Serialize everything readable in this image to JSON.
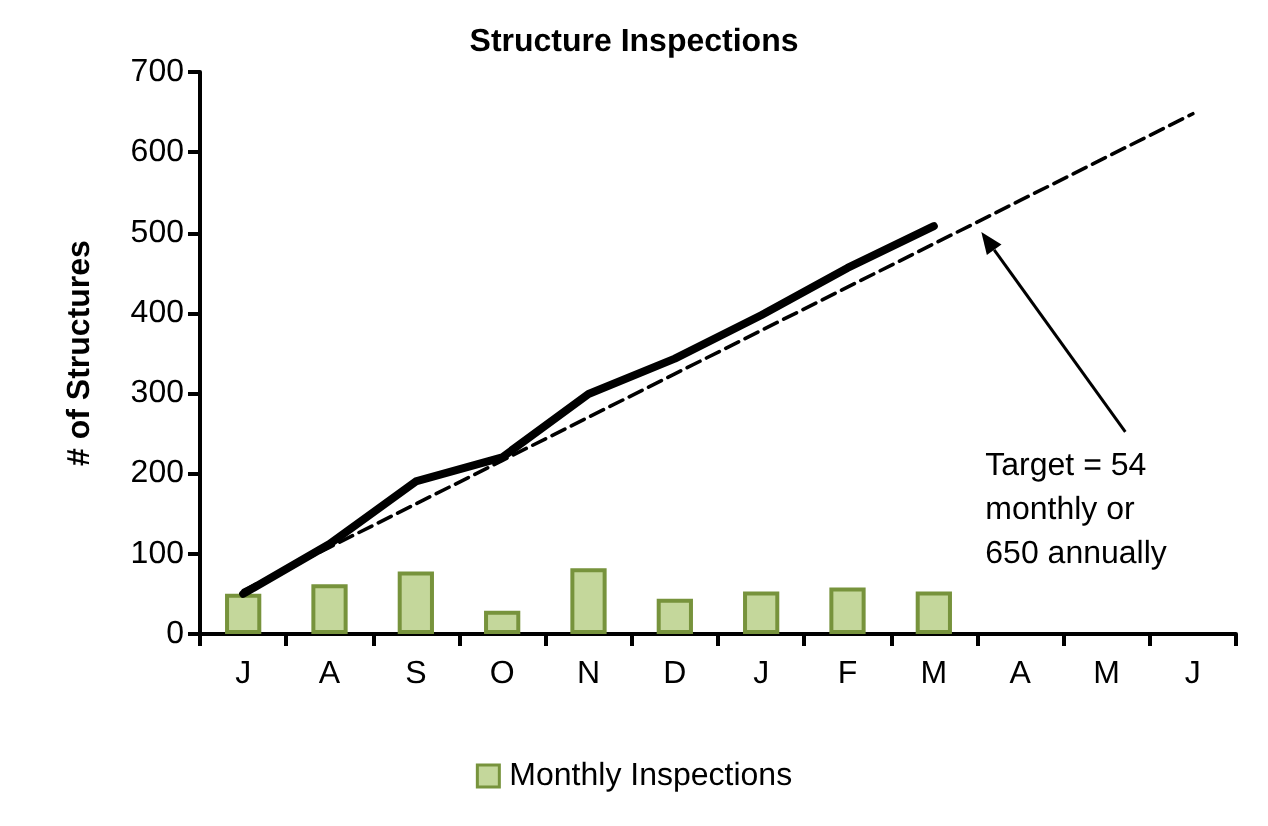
{
  "chart_data": {
    "type": "bar",
    "title": "Structure Inspections",
    "ylabel": "# of Structures",
    "categories": [
      "J",
      "A",
      "S",
      "O",
      "N",
      "D",
      "J",
      "F",
      "M",
      "A",
      "M",
      "J"
    ],
    "series": [
      {
        "name": "Monthly Inspections",
        "color": "#c4d79b",
        "values": [
          50,
          62,
          78,
          29,
          82,
          44,
          53,
          58,
          53,
          null,
          null,
          null
        ]
      },
      {
        "type": "line",
        "color": "#000000",
        "line_style": "solid",
        "values": [
          50,
          112,
          190,
          220,
          299,
          343,
          397,
          456,
          508,
          null,
          null,
          null
        ]
      },
      {
        "type": "line",
        "color": "#000000",
        "line_style": "dashed",
        "values": [
          54,
          108,
          162,
          216,
          270,
          324,
          378,
          432,
          486,
          540,
          594,
          648
        ]
      }
    ],
    "annotations": [
      "Target = 54\nmonthly or\n650 annually"
    ],
    "ylim": [
      0,
      700
    ],
    "yticks": [
      0,
      100,
      200,
      300,
      400,
      500,
      600,
      700
    ],
    "grid": false,
    "legend": "bottom",
    "marker": "none"
  }
}
